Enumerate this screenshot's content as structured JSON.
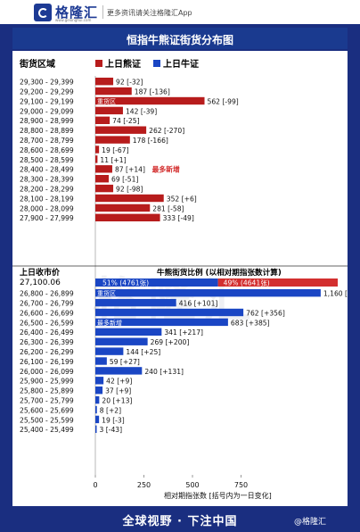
{
  "header": {
    "logo_text": "格隆汇",
    "logo_domain": "www.gelonghui.com",
    "tagline": "更多资讯请关注格隆汇App"
  },
  "title": "恒指牛熊证街货分布图",
  "legend": {
    "range_label": "街货区域",
    "bear_label": "上日熊证",
    "bull_label": "上日牛证"
  },
  "colors": {
    "bear": "#b71c1c",
    "bull": "#1a46c4",
    "highlight": "#d32f2f",
    "frame": "#1a2e80"
  },
  "close_label": "上日收市价",
  "close_value": "27,100.06",
  "ratio_title": "牛熊街货比例 (以相对期指张数计算)",
  "ratio": {
    "bull_text": "51% (4761张)",
    "bear_text": "49% (4641张)",
    "bull_share": 0.506
  },
  "annotations": {
    "heavy": "重货区",
    "bear_new": "最多新增",
    "bull_new": "最多新增"
  },
  "footer": {
    "slogan": "全球视野 · 下注中国",
    "credit": "@格隆汇"
  },
  "chart_data": {
    "type": "bar",
    "orientation": "horizontal",
    "xlabel": "相对期指张数 [括号内为一日变化]",
    "xticks": [
      0,
      250,
      500,
      750
    ],
    "xlim": [
      0,
      1000
    ],
    "bear": [
      {
        "range": "29,300 - 29,399",
        "value": 92,
        "change": "-32",
        "label": "92 [-32]"
      },
      {
        "range": "29,200 - 29,299",
        "value": 187,
        "change": "-136",
        "label": "187 [-136]"
      },
      {
        "range": "29,100 - 29,199",
        "value": 562,
        "change": "-99",
        "label": "562 [-99]",
        "note": "heavy"
      },
      {
        "range": "29,000 - 29,099",
        "value": 142,
        "change": "-39",
        "label": "142 [-39]"
      },
      {
        "range": "28,900 - 28,999",
        "value": 74,
        "change": "-25",
        "label": "74 [-25]"
      },
      {
        "range": "28,800 - 28,899",
        "value": 262,
        "change": "-270",
        "label": "262 [-270]"
      },
      {
        "range": "28,700 - 28,799",
        "value": 178,
        "change": "-166",
        "label": "178 [-166]"
      },
      {
        "range": "28,600 - 28,699",
        "value": 19,
        "change": "-67",
        "label": "19 [-67]"
      },
      {
        "range": "28,500 - 28,599",
        "value": 11,
        "change": "+1",
        "label": "11 [+1]"
      },
      {
        "range": "28,400 - 28,499",
        "value": 87,
        "change": "+14",
        "label": "87 [+14]",
        "note": "bear_new"
      },
      {
        "range": "28,300 - 28,399",
        "value": 69,
        "change": "-51",
        "label": "69 [-51]"
      },
      {
        "range": "28,200 - 28,299",
        "value": 92,
        "change": "-98",
        "label": "92 [-98]"
      },
      {
        "range": "28,100 - 28,199",
        "value": 352,
        "change": "+6",
        "label": "352 [+6]"
      },
      {
        "range": "28,000 - 28,099",
        "value": 281,
        "change": "-58",
        "label": "281 [-58]"
      },
      {
        "range": "27,900 - 27,999",
        "value": 333,
        "change": "-49",
        "label": "333 [-49]"
      }
    ],
    "bull": [
      {
        "range": "26,800 - 26,899",
        "value": 1160,
        "change": "-28",
        "label": "1,160 [-28]",
        "note": "heavy"
      },
      {
        "range": "26,700 - 26,799",
        "value": 416,
        "change": "+101",
        "label": "416 [+101]"
      },
      {
        "range": "26,600 - 26,699",
        "value": 762,
        "change": "+356",
        "label": "762 [+356]"
      },
      {
        "range": "26,500 - 26,599",
        "value": 683,
        "change": "+385",
        "label": "683 [+385]",
        "note": "bull_new"
      },
      {
        "range": "26,400 - 26,499",
        "value": 341,
        "change": "+217",
        "label": "341 [+217]"
      },
      {
        "range": "26,300 - 26,399",
        "value": 269,
        "change": "+200",
        "label": "269 [+200]"
      },
      {
        "range": "26,200 - 26,299",
        "value": 144,
        "change": "+25",
        "label": "144 [+25]"
      },
      {
        "range": "26,100 - 26,199",
        "value": 59,
        "change": "+27",
        "label": "59 [+27]"
      },
      {
        "range": "26,000 - 26,099",
        "value": 240,
        "change": "+131",
        "label": "240 [+131]"
      },
      {
        "range": "25,900 - 25,999",
        "value": 42,
        "change": "+9",
        "label": "42 [+9]"
      },
      {
        "range": "25,800 - 25,899",
        "value": 37,
        "change": "+9",
        "label": "37 [+9]"
      },
      {
        "range": "25,700 - 25,799",
        "value": 20,
        "change": "+13",
        "label": "20 [+13]"
      },
      {
        "range": "25,600 - 25,699",
        "value": 8,
        "change": "+2",
        "label": "8 [+2]"
      },
      {
        "range": "25,500 - 25,599",
        "value": 19,
        "change": "-3",
        "label": "19 [-3]"
      },
      {
        "range": "25,400 - 25,499",
        "value": 3,
        "change": "-43",
        "label": "3 [-43]"
      }
    ]
  }
}
